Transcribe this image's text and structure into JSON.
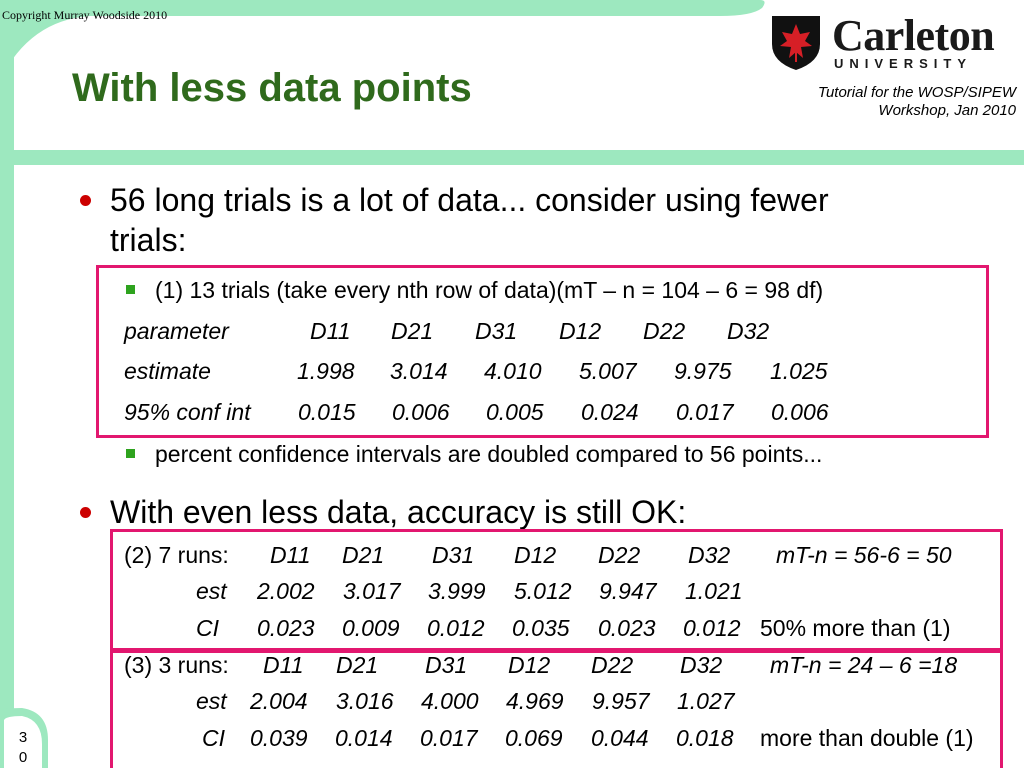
{
  "header": {
    "copyright": "Copyright Murray Woodside 2010",
    "title": "With less data points",
    "logo": {
      "name": "Carleton",
      "subname": "UNIVERSITY"
    },
    "tagline": [
      "Tutorial for the WOSP/SIPEW",
      "Workshop, Jan 2010"
    ]
  },
  "bullets": {
    "b1": [
      "56 long trials is a lot of data... consider using fewer",
      "trials:"
    ],
    "b1_sub1": "(1) 13 trials (take every nth row of data)(mT – n = 104 – 6 = 98 df)",
    "table1": {
      "headers": [
        "parameter",
        "D11",
        "D21",
        "D31",
        "D12",
        "D22",
        "D32"
      ],
      "estimate": [
        "estimate",
        "1.998",
        "3.014",
        "4.010",
        "5.007",
        "9.975",
        "1.025"
      ],
      "ci": [
        "95% conf int",
        "0.015",
        "0.006",
        "0.005",
        "0.024",
        "0.017",
        "0.006"
      ]
    },
    "b1_sub2": "percent confidence intervals are doubled compared to 56 points...",
    "b2": "With even less data, accuracy is still OK:",
    "runs2": {
      "label": "(2) 7 runs:",
      "headers": [
        "D11",
        "D21",
        "D31",
        "D12",
        "D22",
        "D32"
      ],
      "df": "mT-n = 56-6 = 50",
      "est_label": "est",
      "est": [
        "2.002",
        "3.017",
        "3.999",
        "5.012",
        "9.947",
        "1.021"
      ],
      "ci_label": "CI",
      "ci": [
        "0.023",
        "0.009",
        "0.012",
        "0.035",
        "0.023",
        "0.012"
      ],
      "note": "50% more than (1)"
    },
    "runs3": {
      "label": "(3) 3 runs:",
      "headers": [
        "D11",
        "D21",
        "D31",
        "D12",
        "D22",
        "D32"
      ],
      "df": "mT-n = 24 – 6 =18",
      "est_label": "est",
      "est": [
        "2.004",
        "3.016",
        "4.000",
        "4.969",
        "9.957",
        "1.027"
      ],
      "ci_label": "CI",
      "ci": [
        "0.039",
        "0.014",
        "0.017",
        "0.069",
        "0.044",
        "0.018"
      ],
      "note": "more than double (1)"
    }
  },
  "footer": {
    "slide_number": [
      "3",
      "0"
    ]
  },
  "colors": {
    "title": "#2f6a1c",
    "band": "#9de8bf",
    "box": "#e2176f",
    "bullet": "#cc0000",
    "sub_bullet": "#2ea31e"
  }
}
